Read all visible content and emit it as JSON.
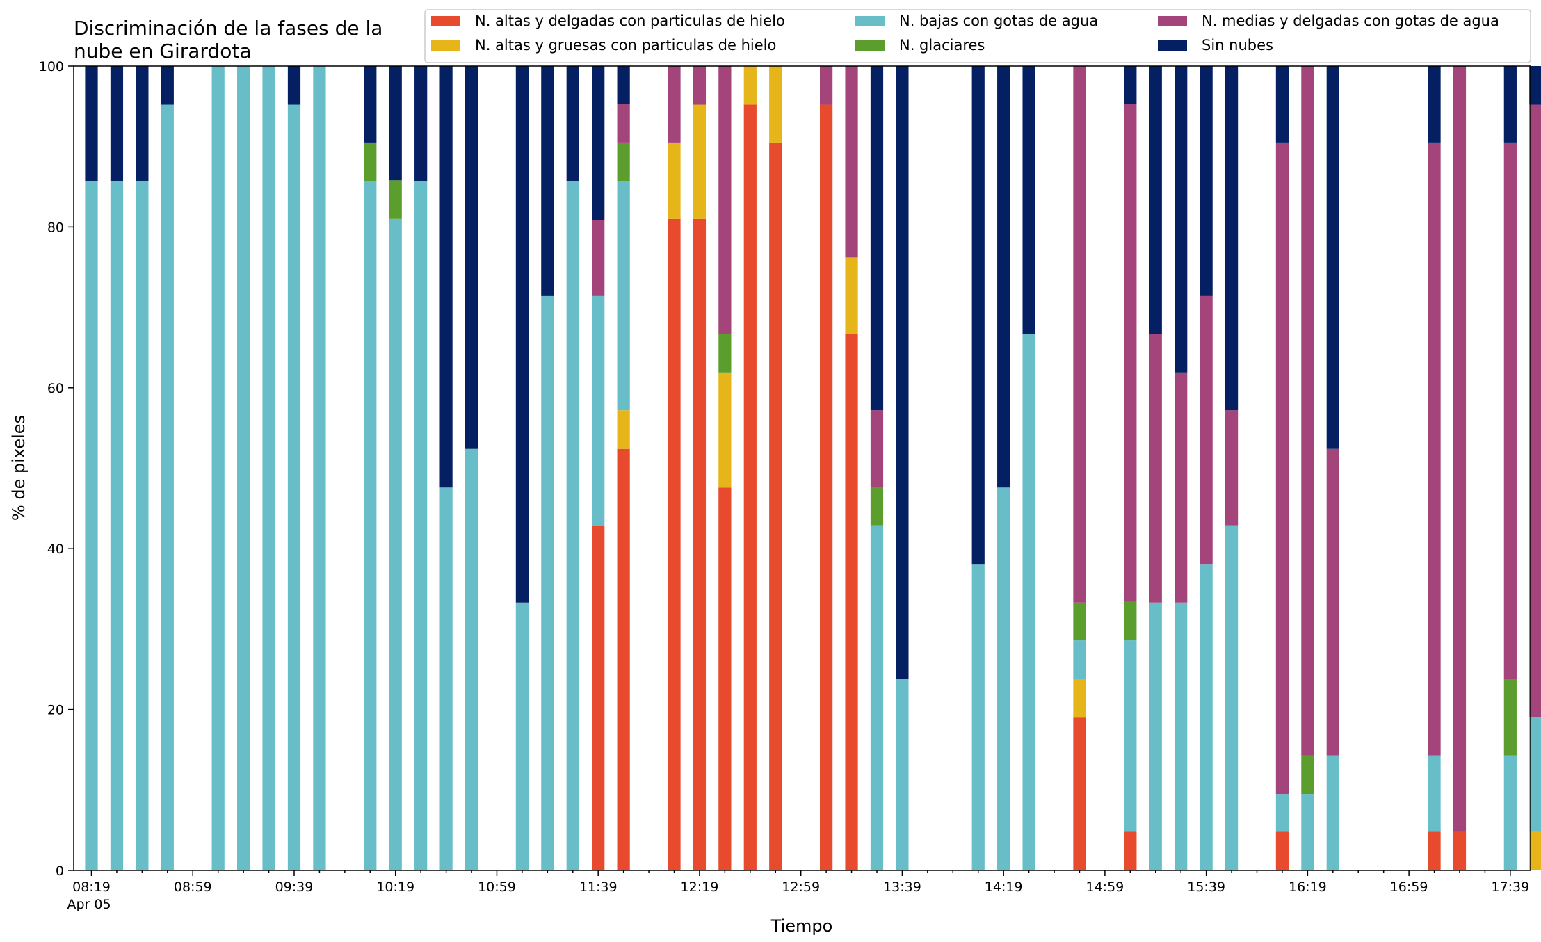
{
  "chart_data": {
    "type": "bar",
    "stacked": true,
    "title": "Discriminación de la fases de la\nnube en Girardota",
    "xlabel": "Tiempo",
    "ylabel": "% de pixeles",
    "ylim": [
      0,
      100
    ],
    "yticks": [
      0,
      20,
      40,
      60,
      80,
      100
    ],
    "x_range_minutes_since_08_19": [
      -7,
      568
    ],
    "xtick_labels": [
      "08:19",
      "08:59",
      "09:39",
      "10:19",
      "10:59",
      "11:39",
      "12:19",
      "12:59",
      "13:39",
      "14:19",
      "14:59",
      "15:39",
      "16:19",
      "16:59",
      "17:39"
    ],
    "date_label": "Apr 05",
    "legend_position": "top-right",
    "grid": false,
    "colors": {
      "altas_delgadas": "#e84a2d",
      "altas_gruesas": "#e5b519",
      "bajas": "#67bec9",
      "glaciares": "#5c9e2e",
      "medias": "#a3447a",
      "sin_nubes": "#041f62"
    },
    "series_order": [
      "altas_delgadas",
      "altas_gruesas",
      "bajas",
      "glaciares",
      "medias",
      "sin_nubes"
    ],
    "series": [
      {
        "key": "altas_delgadas",
        "name": "N. altas y delgadas con particulas de hielo"
      },
      {
        "key": "altas_gruesas",
        "name": "N. altas y gruesas con particulas de hielo"
      },
      {
        "key": "bajas",
        "name": "N. bajas con gotas de agua"
      },
      {
        "key": "glaciares",
        "name": "N. glaciares"
      },
      {
        "key": "medias",
        "name": "N. medias y delgadas con gotas de agua"
      },
      {
        "key": "sin_nubes",
        "name": "Sin nubes"
      }
    ],
    "bars": [
      {
        "x": "08:19",
        "altas_delgadas": 0,
        "altas_gruesas": 0,
        "bajas": 85.7,
        "glaciares": 0,
        "medias": 0,
        "sin_nubes": 14.3
      },
      {
        "x": "08:29",
        "altas_delgadas": 0,
        "altas_gruesas": 0,
        "bajas": 85.7,
        "glaciares": 0,
        "medias": 0,
        "sin_nubes": 14.3
      },
      {
        "x": "08:39",
        "altas_delgadas": 0,
        "altas_gruesas": 0,
        "bajas": 85.7,
        "glaciares": 0,
        "medias": 0,
        "sin_nubes": 14.3
      },
      {
        "x": "08:49",
        "altas_delgadas": 0,
        "altas_gruesas": 0,
        "bajas": 95.2,
        "glaciares": 0,
        "medias": 0,
        "sin_nubes": 4.8
      },
      {
        "x": "09:09",
        "altas_delgadas": 0,
        "altas_gruesas": 0,
        "bajas": 100,
        "glaciares": 0,
        "medias": 0,
        "sin_nubes": 0
      },
      {
        "x": "09:19",
        "altas_delgadas": 0,
        "altas_gruesas": 0,
        "bajas": 100,
        "glaciares": 0,
        "medias": 0,
        "sin_nubes": 0
      },
      {
        "x": "09:29",
        "altas_delgadas": 0,
        "altas_gruesas": 0,
        "bajas": 100,
        "glaciares": 0,
        "medias": 0,
        "sin_nubes": 0
      },
      {
        "x": "09:39",
        "altas_delgadas": 0,
        "altas_gruesas": 0,
        "bajas": 95.2,
        "glaciares": 0,
        "medias": 0,
        "sin_nubes": 4.8
      },
      {
        "x": "09:49",
        "altas_delgadas": 0,
        "altas_gruesas": 0,
        "bajas": 100,
        "glaciares": 0,
        "medias": 0,
        "sin_nubes": 0
      },
      {
        "x": "10:09",
        "altas_delgadas": 0,
        "altas_gruesas": 0,
        "bajas": 85.7,
        "glaciares": 4.8,
        "medias": 0,
        "sin_nubes": 9.5
      },
      {
        "x": "10:19",
        "altas_delgadas": 0,
        "altas_gruesas": 0,
        "bajas": 81.0,
        "glaciares": 4.8,
        "medias": 0,
        "sin_nubes": 14.2
      },
      {
        "x": "10:29",
        "altas_delgadas": 0,
        "altas_gruesas": 0,
        "bajas": 85.7,
        "glaciares": 0,
        "medias": 0,
        "sin_nubes": 14.3
      },
      {
        "x": "10:39",
        "altas_delgadas": 0,
        "altas_gruesas": 0,
        "bajas": 47.6,
        "glaciares": 0,
        "medias": 0,
        "sin_nubes": 52.4
      },
      {
        "x": "10:49",
        "altas_delgadas": 0,
        "altas_gruesas": 0,
        "bajas": 52.4,
        "glaciares": 0,
        "medias": 0,
        "sin_nubes": 47.6
      },
      {
        "x": "11:09",
        "altas_delgadas": 0,
        "altas_gruesas": 0,
        "bajas": 33.3,
        "glaciares": 0,
        "medias": 0,
        "sin_nubes": 66.7
      },
      {
        "x": "11:19",
        "altas_delgadas": 0,
        "altas_gruesas": 0,
        "bajas": 71.4,
        "glaciares": 0,
        "medias": 0,
        "sin_nubes": 28.6
      },
      {
        "x": "11:29",
        "altas_delgadas": 0,
        "altas_gruesas": 0,
        "bajas": 85.7,
        "glaciares": 0,
        "medias": 0,
        "sin_nubes": 14.3
      },
      {
        "x": "11:39",
        "altas_delgadas": 42.9,
        "altas_gruesas": 0,
        "bajas": 28.5,
        "glaciares": 0,
        "medias": 9.5,
        "sin_nubes": 19.1
      },
      {
        "x": "11:49",
        "altas_delgadas": 52.4,
        "altas_gruesas": 4.8,
        "bajas": 28.5,
        "glaciares": 4.8,
        "medias": 4.8,
        "sin_nubes": 4.7
      },
      {
        "x": "12:09",
        "altas_delgadas": 81.0,
        "altas_gruesas": 9.5,
        "bajas": 0,
        "glaciares": 0,
        "medias": 9.5,
        "sin_nubes": 0
      },
      {
        "x": "12:19",
        "altas_delgadas": 81.0,
        "altas_gruesas": 14.2,
        "bajas": 0,
        "glaciares": 0,
        "medias": 4.8,
        "sin_nubes": 0
      },
      {
        "x": "12:29",
        "altas_delgadas": 47.6,
        "altas_gruesas": 14.3,
        "bajas": 0,
        "glaciares": 4.8,
        "medias": 33.3,
        "sin_nubes": 0
      },
      {
        "x": "12:39",
        "altas_delgadas": 95.2,
        "altas_gruesas": 4.8,
        "bajas": 0,
        "glaciares": 0,
        "medias": 0,
        "sin_nubes": 0
      },
      {
        "x": "12:49",
        "altas_delgadas": 90.5,
        "altas_gruesas": 9.5,
        "bajas": 0,
        "glaciares": 0,
        "medias": 0,
        "sin_nubes": 0
      },
      {
        "x": "13:09",
        "altas_delgadas": 95.2,
        "altas_gruesas": 0,
        "bajas": 0,
        "glaciares": 0,
        "medias": 4.8,
        "sin_nubes": 0
      },
      {
        "x": "13:19",
        "altas_delgadas": 66.7,
        "altas_gruesas": 9.5,
        "bajas": 0,
        "glaciares": 0,
        "medias": 23.8,
        "sin_nubes": 0
      },
      {
        "x": "13:29",
        "altas_delgadas": 0,
        "altas_gruesas": 0,
        "bajas": 42.9,
        "glaciares": 4.8,
        "medias": 9.5,
        "sin_nubes": 42.8
      },
      {
        "x": "13:39",
        "altas_delgadas": 0,
        "altas_gruesas": 0,
        "bajas": 23.8,
        "glaciares": 0,
        "medias": 0,
        "sin_nubes": 76.2
      },
      {
        "x": "14:09",
        "altas_delgadas": 0,
        "altas_gruesas": 0,
        "bajas": 38.1,
        "glaciares": 0,
        "medias": 0,
        "sin_nubes": 61.9
      },
      {
        "x": "14:19",
        "altas_delgadas": 0,
        "altas_gruesas": 0,
        "bajas": 47.6,
        "glaciares": 0,
        "medias": 0,
        "sin_nubes": 52.4
      },
      {
        "x": "14:29",
        "altas_delgadas": 0,
        "altas_gruesas": 0,
        "bajas": 66.7,
        "glaciares": 0,
        "medias": 0,
        "sin_nubes": 33.3
      },
      {
        "x": "14:49",
        "altas_delgadas": 19.0,
        "altas_gruesas": 4.8,
        "bajas": 4.8,
        "glaciares": 4.7,
        "medias": 66.7,
        "sin_nubes": 0
      },
      {
        "x": "15:09",
        "altas_delgadas": 4.8,
        "altas_gruesas": 0,
        "bajas": 23.8,
        "glaciares": 4.8,
        "medias": 61.9,
        "sin_nubes": 4.7
      },
      {
        "x": "15:19",
        "altas_delgadas": 0,
        "altas_gruesas": 0,
        "bajas": 33.3,
        "glaciares": 0,
        "medias": 33.4,
        "sin_nubes": 33.3
      },
      {
        "x": "15:29",
        "altas_delgadas": 0,
        "altas_gruesas": 0,
        "bajas": 33.3,
        "glaciares": 0,
        "medias": 28.6,
        "sin_nubes": 38.1
      },
      {
        "x": "15:39",
        "altas_delgadas": 0,
        "altas_gruesas": 0,
        "bajas": 38.1,
        "glaciares": 0,
        "medias": 33.3,
        "sin_nubes": 28.6
      },
      {
        "x": "15:49",
        "altas_delgadas": 0,
        "altas_gruesas": 0,
        "bajas": 42.9,
        "glaciares": 0,
        "medias": 14.3,
        "sin_nubes": 42.8
      },
      {
        "x": "16:09",
        "altas_delgadas": 4.8,
        "altas_gruesas": 0,
        "bajas": 4.7,
        "glaciares": 0,
        "medias": 81.0,
        "sin_nubes": 9.5
      },
      {
        "x": "16:19",
        "altas_delgadas": 0,
        "altas_gruesas": 0,
        "bajas": 9.5,
        "glaciares": 4.8,
        "medias": 85.7,
        "sin_nubes": 0
      },
      {
        "x": "16:29",
        "altas_delgadas": 0,
        "altas_gruesas": 0,
        "bajas": 14.3,
        "glaciares": 0,
        "medias": 38.1,
        "sin_nubes": 47.6
      },
      {
        "x": "17:09",
        "altas_delgadas": 4.8,
        "altas_gruesas": 0,
        "bajas": 9.5,
        "glaciares": 0,
        "medias": 76.2,
        "sin_nubes": 9.5
      },
      {
        "x": "17:19",
        "altas_delgadas": 4.8,
        "altas_gruesas": 0,
        "bajas": 0,
        "glaciares": 0,
        "medias": 95.2,
        "sin_nubes": 0
      },
      {
        "x": "17:39",
        "altas_delgadas": 0,
        "altas_gruesas": 0,
        "bajas": 14.3,
        "glaciares": 9.5,
        "medias": 66.7,
        "sin_nubes": 9.5
      },
      {
        "x": "17:49",
        "altas_delgadas": 0,
        "altas_gruesas": 4.8,
        "bajas": 14.2,
        "glaciares": 0,
        "medias": 76.2,
        "sin_nubes": 4.8
      }
    ]
  }
}
